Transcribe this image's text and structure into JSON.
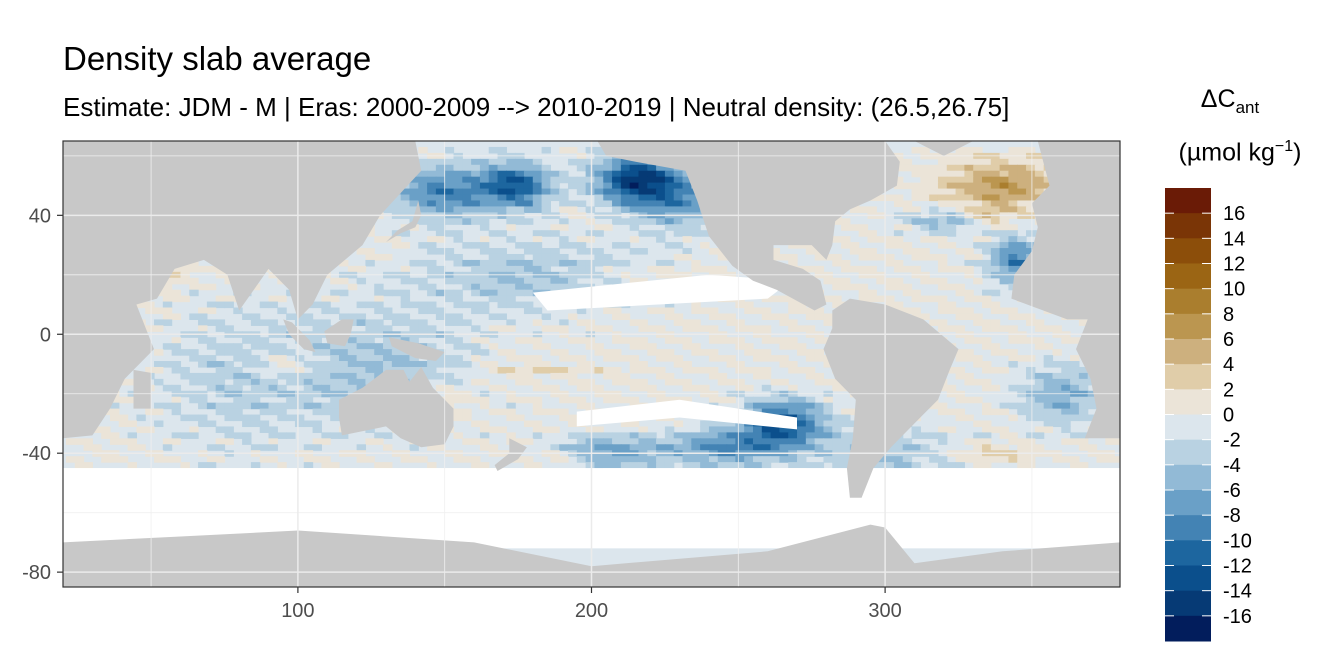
{
  "chart_data": {
    "type": "heatmap",
    "title": "Density slab average",
    "subtitle": "Estimate: JDM - M | Eras: 2000-2009 --> 2010-2019 | Neutral density: (26.5,26.75]",
    "xlabel": "",
    "ylabel": "",
    "xlim": [
      20,
      380
    ],
    "ylim": [
      -85,
      65
    ],
    "x_ticks": [
      100,
      200,
      300
    ],
    "y_ticks": [
      40,
      0,
      -40,
      -80
    ],
    "grid": true,
    "legend": {
      "title_main": "ΔC",
      "title_sub": "ant",
      "unit_pre": "(µmol kg",
      "unit_sup": "−1",
      "unit_post": ")",
      "placement": "right",
      "labels": [
        "16",
        "14",
        "12",
        "10",
        "8",
        "6",
        "4",
        "2",
        "0",
        "-2",
        "-4",
        "-6",
        "-8",
        "-10",
        "-12",
        "-14",
        "-16"
      ],
      "colors": [
        "#6a1b06",
        "#7a3506",
        "#8c4e0a",
        "#9b6514",
        "#aa7e2e",
        "#bb9650",
        "#cdb07e",
        "#e0cda9",
        "#ebe4d8",
        "#dce6ed",
        "#b9d2e2",
        "#92bad6",
        "#6aa0c7",
        "#4383b4",
        "#1d669f",
        "#0b4f8c",
        "#063a75",
        "#021d5c"
      ]
    },
    "land_color": "#c8c8c8",
    "no_data_color": "#ffffff"
  }
}
